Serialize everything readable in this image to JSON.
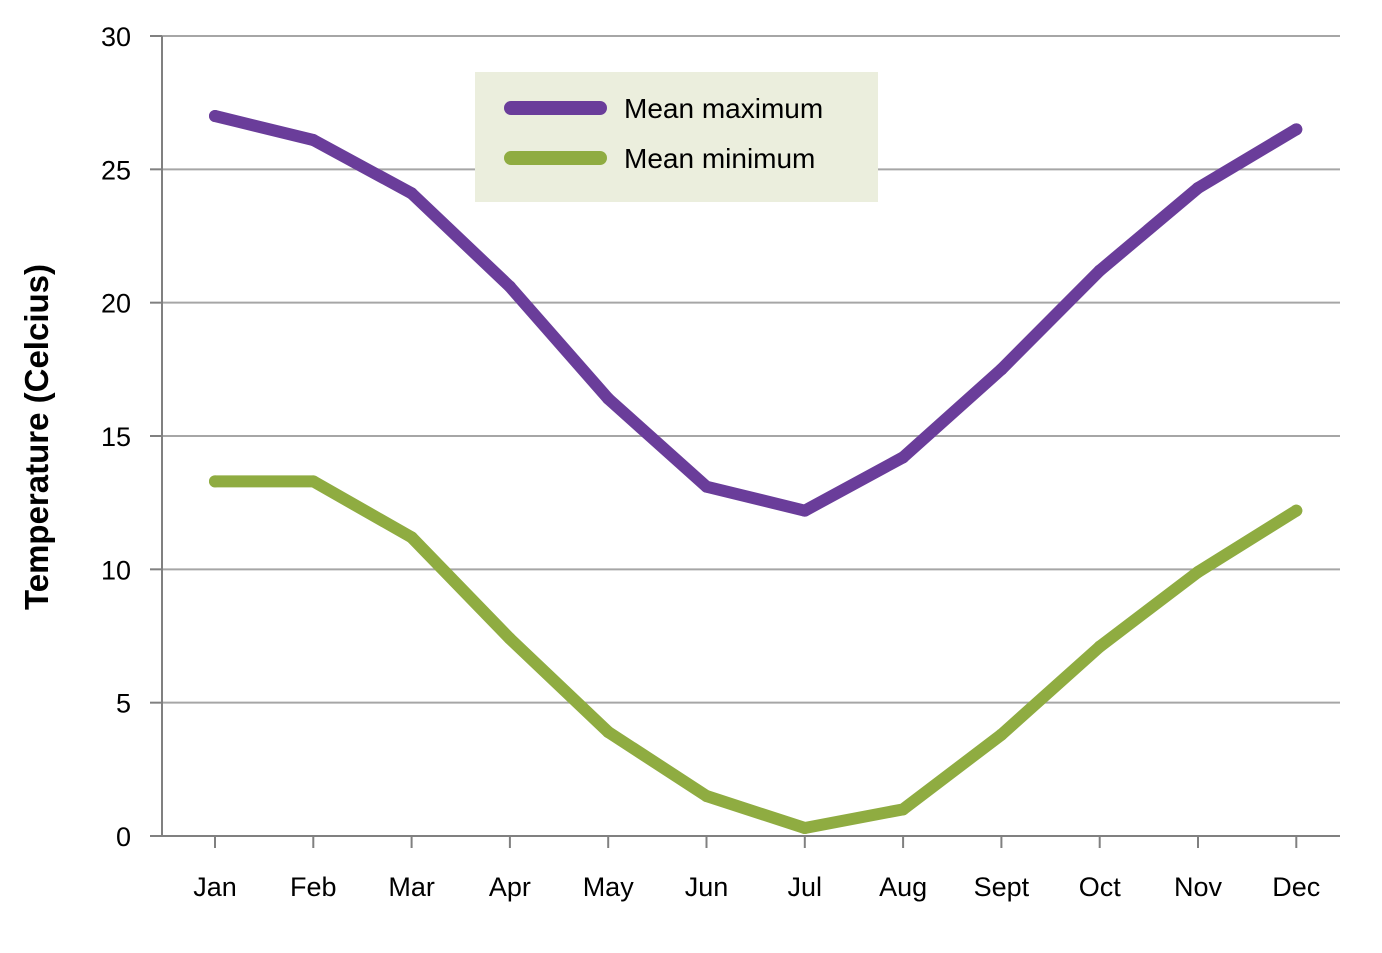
{
  "chart_data": {
    "type": "line",
    "title": "",
    "xlabel": "",
    "ylabel": "Temperature (Celcius)",
    "categories": [
      "Jan",
      "Feb",
      "Mar",
      "Apr",
      "May",
      "Jun",
      "Jul",
      "Aug",
      "Sept",
      "Oct",
      "Nov",
      "Dec"
    ],
    "ylim": [
      0,
      30
    ],
    "yticks": [
      0,
      5,
      10,
      15,
      20,
      25,
      30
    ],
    "grid": true,
    "legend_position": "top-center",
    "series": [
      {
        "name": "Mean maximum",
        "color": "#6a3d9a",
        "values": [
          27.0,
          26.1,
          24.1,
          20.6,
          16.4,
          13.1,
          12.2,
          14.2,
          17.5,
          21.2,
          24.3,
          26.5
        ]
      },
      {
        "name": "Mean minimum",
        "color": "#8fac41",
        "values": [
          13.3,
          13.3,
          11.2,
          7.4,
          3.9,
          1.5,
          0.3,
          1.0,
          3.8,
          7.1,
          9.9,
          12.2
        ]
      }
    ],
    "colors": {
      "grid": "#a6a6a6",
      "axis": "#808080",
      "legend_background": "#ebeedd"
    }
  }
}
